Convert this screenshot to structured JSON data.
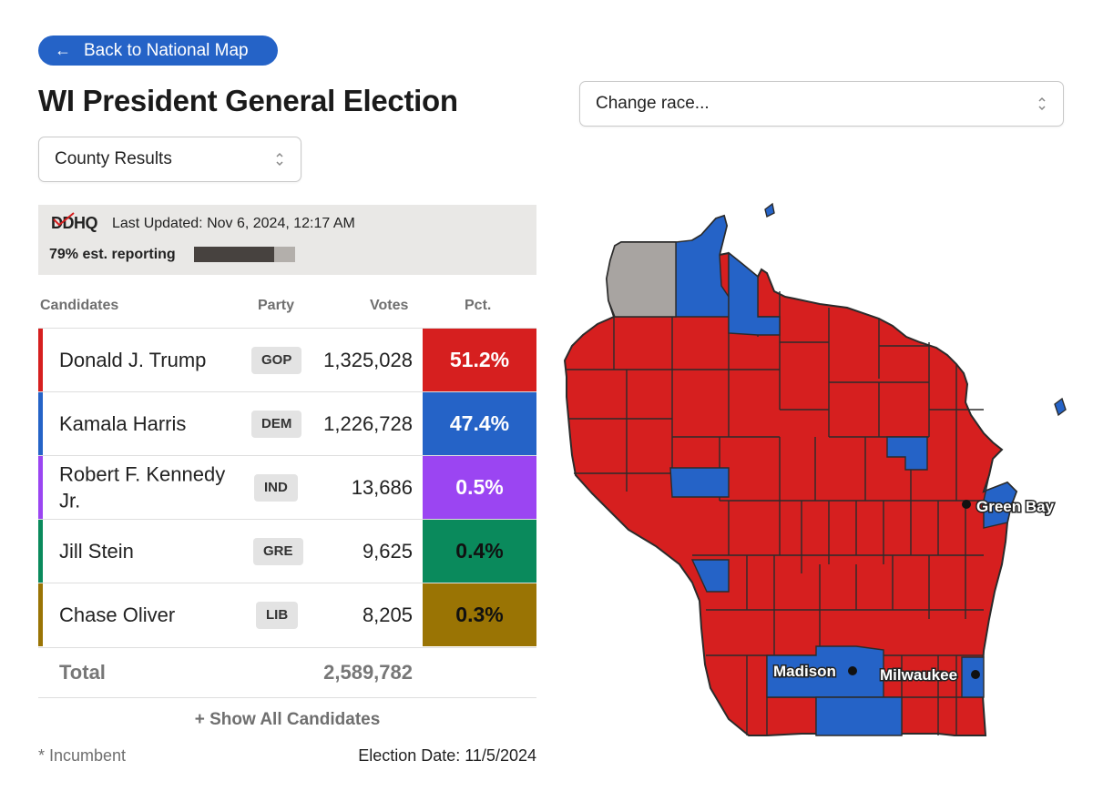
{
  "nav": {
    "back_label": "Back to National Map",
    "back_icon": "arrow-left-icon"
  },
  "page": {
    "title": "WI President General Election"
  },
  "selects": {
    "view_value": "County Results",
    "race_placeholder": "Change race..."
  },
  "status": {
    "logo_text": "DDHQ",
    "last_updated": "Last Updated: Nov 6, 2024, 12:17 AM",
    "reporting_text": "79% est. reporting",
    "reporting_fraction": 0.79
  },
  "table": {
    "headers": {
      "candidates": "Candidates",
      "party": "Party",
      "votes": "Votes",
      "pct": "Pct."
    },
    "rows": [
      {
        "name": "Donald J. Trump",
        "party": "GOP",
        "votes": "1,325,028",
        "pct": "51.2%",
        "color": "#d61f1f",
        "pct_text_color": "#ffffff"
      },
      {
        "name": "Kamala Harris",
        "party": "DEM",
        "votes": "1,226,728",
        "pct": "47.4%",
        "color": "#2563c7",
        "pct_text_color": "#ffffff"
      },
      {
        "name": "Robert F. Kennedy Jr.",
        "party": "IND",
        "votes": "13,686",
        "pct": "0.5%",
        "color": "#9b45f2",
        "pct_text_color": "#ffffff"
      },
      {
        "name": "Jill Stein",
        "party": "GRE",
        "votes": "9,625",
        "pct": "0.4%",
        "color": "#0a8a5c",
        "pct_text_color": "#111111"
      },
      {
        "name": "Chase Oliver",
        "party": "LIB",
        "votes": "8,205",
        "pct": "0.3%",
        "color": "#9a7404",
        "pct_text_color": "#111111"
      }
    ],
    "total_label": "Total",
    "total_votes": "2,589,782"
  },
  "show_all_label": "+ Show All Candidates",
  "incumbent_note": "* Incumbent",
  "election_date": "Election Date: 11/5/2024",
  "map": {
    "colors": {
      "gop": "#d61f1f",
      "dem": "#2563c7",
      "none": "#a8a4a1",
      "border": "#2b2b2b"
    },
    "cities": [
      "Green Bay",
      "Madison",
      "Milwaukee"
    ]
  }
}
